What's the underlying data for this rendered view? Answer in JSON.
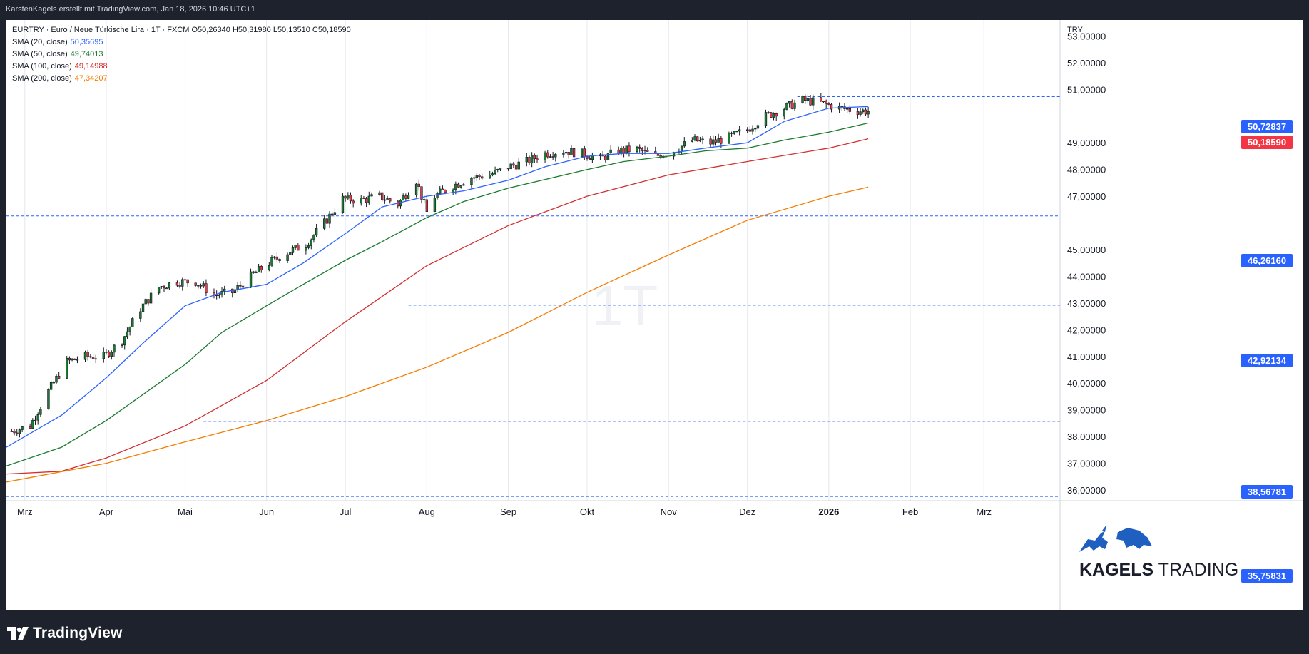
{
  "header": {
    "attribution": "KarstenKagels erstellt mit TradingView.com, Jan 18, 2026 10:46 UTC+1"
  },
  "legend": {
    "symbol_line": "EURTRY · Euro  / Neue Türkische Lira · 1T · FXCM  O50,26340  H50,31980  L50,13510  C50,18590",
    "indicators": [
      {
        "label": "SMA (20, close)",
        "value": "50,35695",
        "color": "#2962ff"
      },
      {
        "label": "SMA (50, close)",
        "value": "49,74013",
        "color": "#1b7a2e"
      },
      {
        "label": "SMA (100, close)",
        "value": "49,14988",
        "color": "#d32f2f"
      },
      {
        "label": "SMA (200, close)",
        "value": "47,34207",
        "color": "#f57c00"
      }
    ]
  },
  "watermark": "1T",
  "currency_label": "TRY",
  "branding": {
    "name_bold": "KAGELS",
    "name_rest": " TRADING",
    "platform": "TradingView"
  },
  "price_tags": [
    {
      "label": "50,72837",
      "color": "#2962ff"
    },
    {
      "label": "50,18590",
      "color": "#f23645"
    },
    {
      "label": "46,26160",
      "color": "#2962ff"
    },
    {
      "label": "42,92134",
      "color": "#2962ff"
    },
    {
      "label": "38,56781",
      "color": "#2962ff"
    },
    {
      "label": "35,75831",
      "color": "#2962ff"
    }
  ],
  "chart_data": {
    "type": "candlestick",
    "title": "EURTRY · Euro / Neue Türkische Lira · 1T · FXCM",
    "y_axis": {
      "label": "TRY",
      "ylim": [
        35.6,
        53.6
      ],
      "ticks": [
        "53,00000",
        "52,00000",
        "51,00000",
        "49,00000",
        "48,00000",
        "47,00000",
        "45,00000",
        "44,00000",
        "43,00000",
        "42,00000",
        "41,00000",
        "40,00000",
        "39,00000",
        "38,00000",
        "37,00000",
        "36,00000"
      ],
      "tick_values": [
        53,
        52,
        51,
        49,
        48,
        47,
        45,
        44,
        43,
        42,
        41,
        40,
        39,
        38,
        37,
        36
      ]
    },
    "x_axis": {
      "months": [
        "Mrz",
        "Apr",
        "Mai",
        "Jun",
        "Jul",
        "Aug",
        "Sep",
        "Okt",
        "Nov",
        "Dez",
        "2026",
        "Feb",
        "Mrz"
      ],
      "month_dates": [
        "2025-03-01",
        "2025-04-01",
        "2025-05-01",
        "2025-06-01",
        "2025-07-01",
        "2025-08-01",
        "2025-09-01",
        "2025-10-01",
        "2025-11-01",
        "2025-12-01",
        "2026-01-01",
        "2026-02-01",
        "2026-03-01"
      ],
      "range": [
        "2025-02-22",
        "2026-03-30"
      ]
    },
    "horizontal_lines": [
      50.72837,
      46.2616,
      42.92134,
      38.56781,
      35.75831
    ],
    "close_key": [
      [
        "2025-02-24",
        38.2
      ],
      [
        "2025-03-03",
        38.4
      ],
      [
        "2025-03-10",
        39.7
      ],
      [
        "2025-03-17",
        40.8
      ],
      [
        "2025-03-24",
        41.0
      ],
      [
        "2025-03-31",
        41.0
      ],
      [
        "2025-04-07",
        41.6
      ],
      [
        "2025-04-14",
        42.8
      ],
      [
        "2025-04-21",
        43.6
      ],
      [
        "2025-04-28",
        43.8
      ],
      [
        "2025-05-05",
        43.8
      ],
      [
        "2025-05-12",
        43.3
      ],
      [
        "2025-05-19",
        43.4
      ],
      [
        "2025-05-26",
        44.0
      ],
      [
        "2025-06-02",
        44.5
      ],
      [
        "2025-06-09",
        44.9
      ],
      [
        "2025-06-16",
        45.2
      ],
      [
        "2025-06-23",
        46.0
      ],
      [
        "2025-06-30",
        46.9
      ],
      [
        "2025-07-07",
        46.85
      ],
      [
        "2025-07-14",
        47.0
      ],
      [
        "2025-07-21",
        46.7
      ],
      [
        "2025-07-28",
        47.6
      ],
      [
        "2025-08-01",
        46.4
      ],
      [
        "2025-08-04",
        47.0
      ],
      [
        "2025-08-11",
        47.4
      ],
      [
        "2025-08-18",
        47.7
      ],
      [
        "2025-08-25",
        47.8
      ],
      [
        "2025-09-01",
        48.1
      ],
      [
        "2025-09-08",
        48.3
      ],
      [
        "2025-09-15",
        48.6
      ],
      [
        "2025-09-22",
        48.7
      ],
      [
        "2025-09-29",
        48.6
      ],
      [
        "2025-10-06",
        48.4
      ],
      [
        "2025-10-13",
        48.7
      ],
      [
        "2025-10-20",
        48.75
      ],
      [
        "2025-10-27",
        48.5
      ],
      [
        "2025-11-03",
        48.7
      ],
      [
        "2025-11-10",
        49.1
      ],
      [
        "2025-11-17",
        49.0
      ],
      [
        "2025-11-24",
        49.2
      ],
      [
        "2025-12-01",
        49.5
      ],
      [
        "2025-12-08",
        50.0
      ],
      [
        "2025-12-15",
        50.3
      ],
      [
        "2025-12-22",
        50.6
      ],
      [
        "2025-12-29",
        50.5
      ],
      [
        "2026-01-05",
        50.3
      ],
      [
        "2026-01-12",
        50.2
      ],
      [
        "2026-01-16",
        50.1859
      ]
    ],
    "sma_series": [
      {
        "name": "SMA (20, close)",
        "color": "#2962ff",
        "points": [
          [
            "2025-02-22",
            37.6
          ],
          [
            "2025-03-15",
            38.8
          ],
          [
            "2025-04-01",
            40.2
          ],
          [
            "2025-04-15",
            41.5
          ],
          [
            "2025-05-01",
            42.9
          ],
          [
            "2025-05-15",
            43.4
          ],
          [
            "2025-06-01",
            43.7
          ],
          [
            "2025-06-15",
            44.5
          ],
          [
            "2025-07-01",
            45.6
          ],
          [
            "2025-07-15",
            46.6
          ],
          [
            "2025-08-01",
            47.0
          ],
          [
            "2025-08-15",
            47.2
          ],
          [
            "2025-09-01",
            47.6
          ],
          [
            "2025-09-15",
            48.1
          ],
          [
            "2025-10-01",
            48.5
          ],
          [
            "2025-10-15",
            48.6
          ],
          [
            "2025-11-01",
            48.6
          ],
          [
            "2025-11-15",
            48.8
          ],
          [
            "2025-12-01",
            49.0
          ],
          [
            "2025-12-15",
            49.8
          ],
          [
            "2026-01-01",
            50.3
          ],
          [
            "2026-01-16",
            50.357
          ]
        ]
      },
      {
        "name": "SMA (50, close)",
        "color": "#1b7a2e",
        "points": [
          [
            "2025-02-22",
            36.9
          ],
          [
            "2025-03-15",
            37.6
          ],
          [
            "2025-04-01",
            38.6
          ],
          [
            "2025-05-01",
            40.7
          ],
          [
            "2025-05-15",
            41.9
          ],
          [
            "2025-06-01",
            42.9
          ],
          [
            "2025-06-15",
            43.7
          ],
          [
            "2025-07-01",
            44.6
          ],
          [
            "2025-07-15",
            45.3
          ],
          [
            "2025-08-01",
            46.2
          ],
          [
            "2025-08-15",
            46.8
          ],
          [
            "2025-09-01",
            47.3
          ],
          [
            "2025-10-01",
            48.0
          ],
          [
            "2025-10-15",
            48.3
          ],
          [
            "2025-11-01",
            48.5
          ],
          [
            "2025-11-15",
            48.7
          ],
          [
            "2025-12-01",
            48.8
          ],
          [
            "2025-12-15",
            49.1
          ],
          [
            "2026-01-01",
            49.4
          ],
          [
            "2026-01-16",
            49.74
          ]
        ]
      },
      {
        "name": "SMA (100, close)",
        "color": "#d32f2f",
        "points": [
          [
            "2025-02-22",
            36.6
          ],
          [
            "2025-03-15",
            36.7
          ],
          [
            "2025-04-01",
            37.2
          ],
          [
            "2025-05-01",
            38.4
          ],
          [
            "2025-06-01",
            40.1
          ],
          [
            "2025-07-01",
            42.3
          ],
          [
            "2025-08-01",
            44.4
          ],
          [
            "2025-09-01",
            45.9
          ],
          [
            "2025-10-01",
            47.0
          ],
          [
            "2025-11-01",
            47.8
          ],
          [
            "2025-12-01",
            48.3
          ],
          [
            "2026-01-01",
            48.8
          ],
          [
            "2026-01-16",
            49.15
          ]
        ]
      },
      {
        "name": "SMA (200, close)",
        "color": "#f57c00",
        "points": [
          [
            "2025-02-22",
            36.3
          ],
          [
            "2025-04-01",
            37.0
          ],
          [
            "2025-05-01",
            37.8
          ],
          [
            "2025-06-01",
            38.6
          ],
          [
            "2025-07-01",
            39.5
          ],
          [
            "2025-08-01",
            40.6
          ],
          [
            "2025-09-01",
            41.9
          ],
          [
            "2025-10-01",
            43.4
          ],
          [
            "2025-11-01",
            44.8
          ],
          [
            "2025-12-01",
            46.1
          ],
          [
            "2026-01-01",
            47.0
          ],
          [
            "2026-01-16",
            47.34
          ]
        ]
      }
    ]
  }
}
